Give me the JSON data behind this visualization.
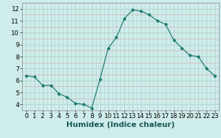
{
  "x": [
    0,
    1,
    2,
    3,
    4,
    5,
    6,
    7,
    8,
    9,
    10,
    11,
    12,
    13,
    14,
    15,
    16,
    17,
    18,
    19,
    20,
    21,
    22,
    23
  ],
  "y": [
    6.4,
    6.3,
    5.6,
    5.6,
    4.9,
    4.6,
    4.1,
    4.0,
    3.7,
    6.1,
    8.7,
    9.6,
    11.2,
    11.9,
    11.8,
    11.5,
    11.0,
    10.7,
    9.4,
    8.7,
    8.1,
    8.0,
    7.0,
    6.4
  ],
  "line_color": "#1a7a6e",
  "marker": "D",
  "marker_size": 2.5,
  "bg_color": "#ceecea",
  "grid_major_color": "#b0ceca",
  "grid_minor_color": "#d8b0b0",
  "xlabel": "Humidex (Indice chaleur)",
  "xlabel_fontsize": 8,
  "xlim": [
    -0.5,
    23.5
  ],
  "ylim": [
    3.5,
    12.5
  ],
  "yticks": [
    4,
    5,
    6,
    7,
    8,
    9,
    10,
    11,
    12
  ],
  "xticks": [
    0,
    1,
    2,
    3,
    4,
    5,
    6,
    7,
    8,
    9,
    10,
    11,
    12,
    13,
    14,
    15,
    16,
    17,
    18,
    19,
    20,
    21,
    22,
    23
  ],
  "tick_fontsize": 6.5,
  "spine_color": "#888888"
}
